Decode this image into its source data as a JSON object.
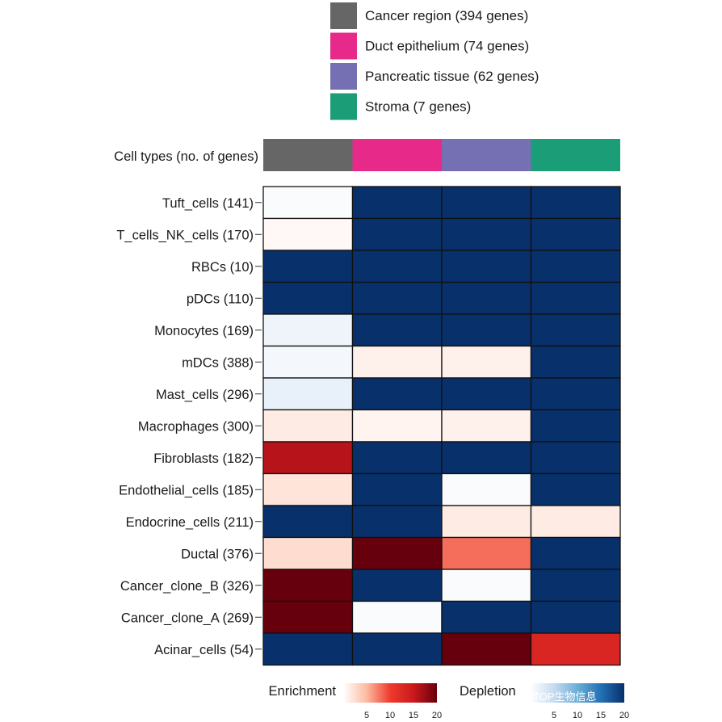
{
  "chart_data": {
    "type": "heatmap",
    "header_label": "Cell types (no. of genes)",
    "columns": [
      {
        "name": "Cancer region",
        "genes": 394,
        "legend": "Cancer region (394 genes)",
        "color": "#666666"
      },
      {
        "name": "Duct epithelium",
        "genes": 74,
        "legend": "Duct epithelium (74 genes)",
        "color": "#E7298A"
      },
      {
        "name": "Pancreatic tissue",
        "genes": 62,
        "legend": "Pancreatic tissue (62 genes)",
        "color": "#7570B3"
      },
      {
        "name": "Stroma",
        "genes": 7,
        "legend": "Stroma (7 genes)",
        "color": "#1B9E77"
      }
    ],
    "rows": [
      {
        "label": "Tuft_cells (141)",
        "cells": [
          {
            "dir": "depletion",
            "v": 0.5
          },
          {
            "dir": "depletion",
            "v": 20
          },
          {
            "dir": "depletion",
            "v": 20
          },
          {
            "dir": "depletion",
            "v": 20
          }
        ]
      },
      {
        "label": "T_cells_NK_cells (170)",
        "cells": [
          {
            "dir": "enrichment",
            "v": 0.5
          },
          {
            "dir": "depletion",
            "v": 20
          },
          {
            "dir": "depletion",
            "v": 20
          },
          {
            "dir": "depletion",
            "v": 20
          }
        ]
      },
      {
        "label": "RBCs (10)",
        "cells": [
          {
            "dir": "depletion",
            "v": 20
          },
          {
            "dir": "depletion",
            "v": 20
          },
          {
            "dir": "depletion",
            "v": 20
          },
          {
            "dir": "depletion",
            "v": 20
          }
        ]
      },
      {
        "label": "pDCs (110)",
        "cells": [
          {
            "dir": "depletion",
            "v": 20
          },
          {
            "dir": "depletion",
            "v": 20
          },
          {
            "dir": "depletion",
            "v": 20
          },
          {
            "dir": "depletion",
            "v": 20
          }
        ]
      },
      {
        "label": "Monocytes (169)",
        "cells": [
          {
            "dir": "depletion",
            "v": 1.5
          },
          {
            "dir": "depletion",
            "v": 20
          },
          {
            "dir": "depletion",
            "v": 20
          },
          {
            "dir": "depletion",
            "v": 20
          }
        ]
      },
      {
        "label": "mDCs (388)",
        "cells": [
          {
            "dir": "depletion",
            "v": 1
          },
          {
            "dir": "enrichment",
            "v": 1
          },
          {
            "dir": "enrichment",
            "v": 1
          },
          {
            "dir": "depletion",
            "v": 20
          }
        ]
      },
      {
        "label": "Mast_cells (296)",
        "cells": [
          {
            "dir": "depletion",
            "v": 2
          },
          {
            "dir": "depletion",
            "v": 20
          },
          {
            "dir": "depletion",
            "v": 20
          },
          {
            "dir": "depletion",
            "v": 20
          }
        ]
      },
      {
        "label": "Macrophages (300)",
        "cells": [
          {
            "dir": "enrichment",
            "v": 1.5
          },
          {
            "dir": "enrichment",
            "v": 0.8
          },
          {
            "dir": "enrichment",
            "v": 1
          },
          {
            "dir": "depletion",
            "v": 20
          }
        ]
      },
      {
        "label": "Fibroblasts (182)",
        "cells": [
          {
            "dir": "enrichment",
            "v": 16
          },
          {
            "dir": "depletion",
            "v": 20
          },
          {
            "dir": "depletion",
            "v": 20
          },
          {
            "dir": "depletion",
            "v": 20
          }
        ]
      },
      {
        "label": "Endothelial_cells (185)",
        "cells": [
          {
            "dir": "enrichment",
            "v": 2
          },
          {
            "dir": "depletion",
            "v": 20
          },
          {
            "dir": "depletion",
            "v": 0.5
          },
          {
            "dir": "depletion",
            "v": 20
          }
        ]
      },
      {
        "label": "Endocrine_cells (211)",
        "cells": [
          {
            "dir": "depletion",
            "v": 20
          },
          {
            "dir": "depletion",
            "v": 20
          },
          {
            "dir": "enrichment",
            "v": 1.5
          },
          {
            "dir": "enrichment",
            "v": 1.5
          }
        ]
      },
      {
        "label": "Ductal (376)",
        "cells": [
          {
            "dir": "enrichment",
            "v": 2.5
          },
          {
            "dir": "enrichment",
            "v": 20
          },
          {
            "dir": "enrichment",
            "v": 8
          },
          {
            "dir": "depletion",
            "v": 20
          }
        ]
      },
      {
        "label": "Cancer_clone_B (326)",
        "cells": [
          {
            "dir": "enrichment",
            "v": 20
          },
          {
            "dir": "depletion",
            "v": 20
          },
          {
            "dir": "depletion",
            "v": 0.5
          },
          {
            "dir": "depletion",
            "v": 20
          }
        ]
      },
      {
        "label": "Cancer_clone_A (269)",
        "cells": [
          {
            "dir": "enrichment",
            "v": 20
          },
          {
            "dir": "depletion",
            "v": 0.5
          },
          {
            "dir": "depletion",
            "v": 20
          },
          {
            "dir": "depletion",
            "v": 20
          }
        ]
      },
      {
        "label": "Acinar_cells (54)",
        "cells": [
          {
            "dir": "depletion",
            "v": 20
          },
          {
            "dir": "depletion",
            "v": 20
          },
          {
            "dir": "enrichment",
            "v": 20
          },
          {
            "dir": "enrichment",
            "v": 13
          }
        ]
      }
    ],
    "color_scales": {
      "enrichment": {
        "title": "Enrichment",
        "range": [
          0,
          20
        ],
        "ticks": [
          5,
          10,
          15,
          20
        ],
        "stops": [
          "#ffffff",
          "#fcbba1",
          "#ef3b2c",
          "#cb181d",
          "#67000d"
        ]
      },
      "depletion": {
        "title": "Depletion",
        "range": [
          0,
          20
        ],
        "ticks": [
          5,
          10,
          15,
          20
        ],
        "stops": [
          "#ffffff",
          "#c6dbef",
          "#6baed6",
          "#2171b5",
          "#08306b"
        ]
      }
    }
  },
  "watermark": "TOP生物信息"
}
